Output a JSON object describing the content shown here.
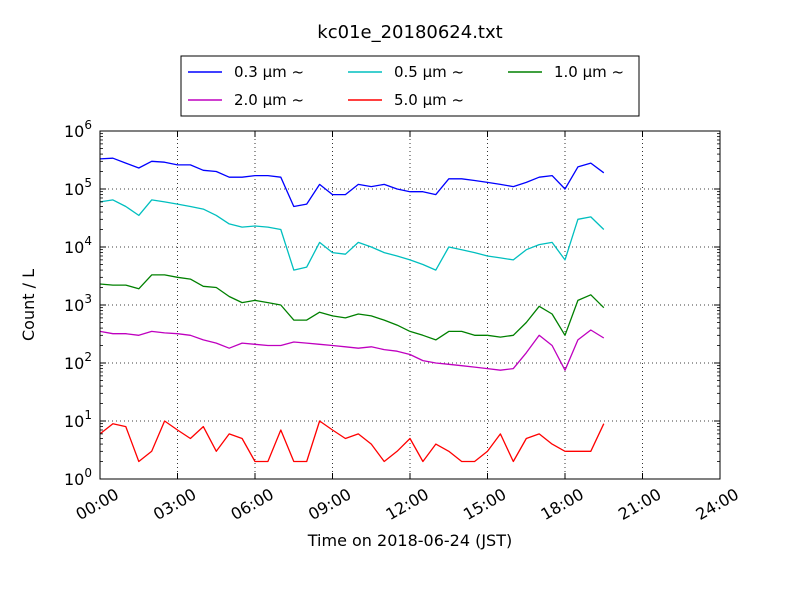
{
  "chart_data": {
    "type": "line",
    "title": "kc01e_20180624.txt",
    "xlabel": "Time on 2018-06-24 (JST)",
    "ylabel": "Count / L",
    "yscale": "log",
    "ylim": [
      1,
      1000000
    ],
    "xlim": [
      "00:00",
      "24:00"
    ],
    "x_tick_labels": [
      "00:00",
      "03:00",
      "06:00",
      "09:00",
      "12:00",
      "15:00",
      "18:00",
      "21:00",
      "24:00"
    ],
    "y_tick_labels": [
      {
        "base": "10",
        "exp": "0"
      },
      {
        "base": "10",
        "exp": "1"
      },
      {
        "base": "10",
        "exp": "2"
      },
      {
        "base": "10",
        "exp": "3"
      },
      {
        "base": "10",
        "exp": "4"
      },
      {
        "base": "10",
        "exp": "5"
      },
      {
        "base": "10",
        "exp": "6"
      }
    ],
    "grid": true,
    "legend_position": "top-center",
    "x_hours": [
      0,
      0.5,
      1,
      1.5,
      2,
      2.5,
      3,
      3.5,
      4,
      4.5,
      5,
      5.5,
      6,
      6.5,
      7,
      7.5,
      8,
      8.5,
      9,
      9.5,
      10,
      10.5,
      11,
      11.5,
      12,
      12.5,
      13,
      13.5,
      14,
      14.5,
      15,
      15.5,
      16,
      16.5,
      17,
      17.5,
      18,
      18.5,
      19,
      19.5
    ],
    "series": [
      {
        "name": "0.3 μm ~",
        "color": "#0000ff",
        "values": [
          330000,
          340000,
          280000,
          230000,
          300000,
          290000,
          260000,
          260000,
          210000,
          200000,
          160000,
          160000,
          170000,
          170000,
          160000,
          50000,
          55000,
          120000,
          80000,
          80000,
          120000,
          110000,
          120000,
          100000,
          90000,
          90000,
          80000,
          150000,
          150000,
          140000,
          130000,
          120000,
          110000,
          130000,
          160000,
          170000,
          100000,
          240000,
          280000,
          190000
        ]
      },
      {
        "name": "0.5 μm ~",
        "color": "#00bfbf",
        "values": [
          60000,
          65000,
          50000,
          35000,
          65000,
          60000,
          55000,
          50000,
          45000,
          35000,
          25000,
          22000,
          23000,
          22000,
          20000,
          4000,
          4500,
          12000,
          8000,
          7500,
          12000,
          10000,
          8000,
          7000,
          6000,
          5000,
          4000,
          10000,
          9000,
          8000,
          7000,
          6500,
          6000,
          9000,
          11000,
          12000,
          6000,
          30000,
          33000,
          20000
        ]
      },
      {
        "name": "1.0 μm ~",
        "color": "#008000",
        "values": [
          2300,
          2200,
          2200,
          1900,
          3300,
          3300,
          3000,
          2800,
          2100,
          2000,
          1400,
          1100,
          1200,
          1100,
          1000,
          550,
          550,
          750,
          650,
          600,
          700,
          650,
          550,
          450,
          350,
          300,
          250,
          350,
          350,
          300,
          300,
          280,
          300,
          500,
          950,
          700,
          300,
          1200,
          1500,
          900
        ]
      },
      {
        "name": "2.0 μm ~",
        "color": "#bf00bf",
        "values": [
          350,
          320,
          320,
          300,
          350,
          330,
          320,
          300,
          250,
          220,
          180,
          220,
          210,
          200,
          200,
          230,
          220,
          210,
          200,
          190,
          180,
          190,
          170,
          160,
          140,
          110,
          100,
          95,
          90,
          85,
          80,
          75,
          80,
          150,
          300,
          200,
          75,
          250,
          370,
          270
        ]
      },
      {
        "name": "5.0 μm ~",
        "color": "#ff0000",
        "values": [
          6,
          9,
          8,
          2,
          3,
          10,
          7,
          5,
          8,
          3,
          6,
          5,
          2,
          2,
          7,
          2,
          2,
          10,
          7,
          5,
          6,
          4,
          2,
          3,
          5,
          2,
          4,
          3,
          2,
          2,
          3,
          6,
          2,
          5,
          6,
          4,
          3,
          3,
          3,
          9
        ]
      }
    ]
  }
}
